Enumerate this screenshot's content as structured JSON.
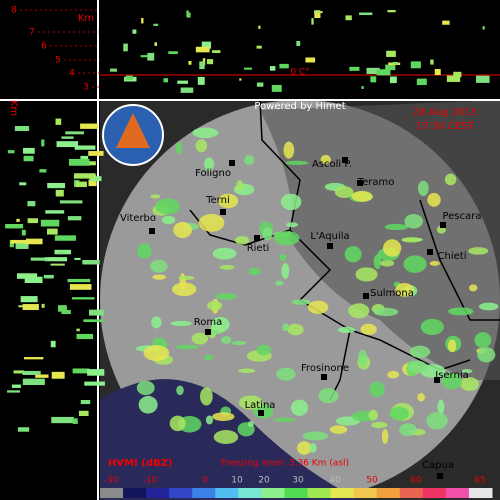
{
  "header": {
    "credit": "Powered by Himet",
    "date": "28 Aug 2013",
    "time": "17:30 CEST"
  },
  "profile": {
    "unit": "Km",
    "heights": [
      "8",
      "7",
      "6",
      "5",
      "4",
      "3"
    ],
    "side_unit": "Km",
    "freezing_mark": "0 C°"
  },
  "cities": [
    "Foligno",
    "Ascoli P.",
    "Teramo",
    "Terni",
    "Viterbo",
    "Pescara",
    "Rieti",
    "L'Aquila",
    "Chieti",
    "Sulmona",
    "Roma",
    "Frosinone",
    "Isernia",
    "Latina",
    "Capua"
  ],
  "footer": {
    "product": "HVMI (dBZ)",
    "freezing_level": "Freezing level: 3.36 Km (asl)"
  },
  "colorbar": {
    "colors": [
      "#8a8a8a",
      "#14145a",
      "#23239a",
      "#3246c8",
      "#3c82e6",
      "#50bef0",
      "#78e6d2",
      "#8cf08c",
      "#50dc50",
      "#a0e650",
      "#e6e650",
      "#f0c850",
      "#f0a03c",
      "#e66450",
      "#f03264",
      "#f050aa",
      "#e6e6e6"
    ],
    "labels": [
      "-30",
      "-10",
      "0",
      "10",
      "20",
      "30",
      "40",
      "50",
      "60",
      "65"
    ]
  }
}
